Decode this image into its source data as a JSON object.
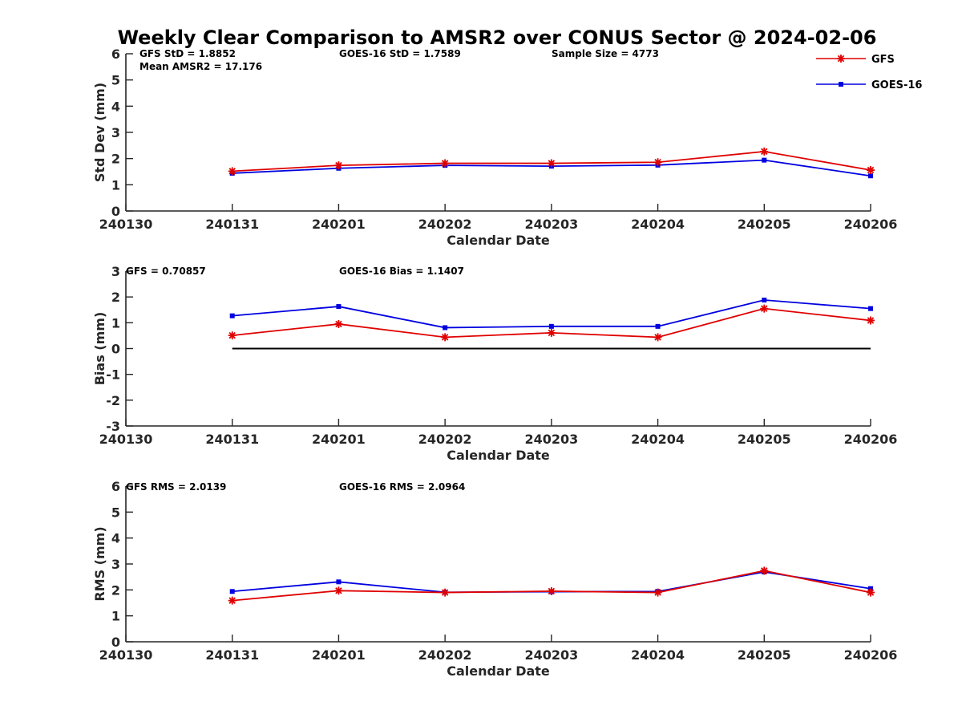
{
  "title": "Weekly Clear Comparison to AMSR2 over CONUS Sector @ 2024-02-06",
  "legend": [
    {
      "name": "GFS",
      "color": "#e00000",
      "marker": "asterisk"
    },
    {
      "name": "GOES-16",
      "color": "#0000e0",
      "marker": "square"
    }
  ],
  "chart_data": [
    {
      "type": "line",
      "ylabel": "Std Dev (mm)",
      "xlabel": "Calendar Date",
      "xticks": [
        "240130",
        "240131",
        "240201",
        "240202",
        "240203",
        "240204",
        "240205",
        "240206"
      ],
      "ylim": [
        0,
        6
      ],
      "yticks": [
        "0",
        "1",
        "2",
        "3",
        "4",
        "5",
        "6"
      ],
      "stats": [
        "GFS StD = 1.8852",
        "GOES-16 StD = 1.7589",
        "Sample Size = 4773",
        "Mean AMSR2 = 17.176"
      ],
      "zero_line": false,
      "series": [
        {
          "name": "GFS",
          "x": [
            "240131",
            "240201",
            "240202",
            "240203",
            "240204",
            "240205",
            "240206"
          ],
          "values": [
            1.52,
            1.74,
            1.82,
            1.82,
            1.86,
            2.27,
            1.56
          ]
        },
        {
          "name": "GOES-16",
          "x": [
            "240131",
            "240201",
            "240202",
            "240203",
            "240204",
            "240205",
            "240206"
          ],
          "values": [
            1.44,
            1.63,
            1.74,
            1.71,
            1.75,
            1.94,
            1.34
          ]
        }
      ]
    },
    {
      "type": "line",
      "ylabel": "Bias (mm)",
      "xlabel": "Calendar Date",
      "xticks": [
        "240130",
        "240131",
        "240201",
        "240202",
        "240203",
        "240204",
        "240205",
        "240206"
      ],
      "ylim": [
        -3,
        3
      ],
      "yticks": [
        "-3",
        "-2",
        "-1",
        "0",
        "1",
        "2",
        "3"
      ],
      "stats": [
        "GFS = 0.70857",
        "GOES-16 Bias  = 1.1407"
      ],
      "zero_line": true,
      "series": [
        {
          "name": "GFS",
          "x": [
            "240131",
            "240201",
            "240202",
            "240203",
            "240204",
            "240205",
            "240206"
          ],
          "values": [
            0.51,
            0.95,
            0.44,
            0.61,
            0.44,
            1.55,
            1.09
          ]
        },
        {
          "name": "GOES-16",
          "x": [
            "240131",
            "240201",
            "240202",
            "240203",
            "240204",
            "240205",
            "240206"
          ],
          "values": [
            1.27,
            1.63,
            0.81,
            0.86,
            0.86,
            1.88,
            1.55
          ]
        }
      ]
    },
    {
      "type": "line",
      "ylabel": "RMS (mm)",
      "xlabel": "Calendar Date",
      "xticks": [
        "240130",
        "240131",
        "240201",
        "240202",
        "240203",
        "240204",
        "240205",
        "240206"
      ],
      "ylim": [
        0,
        6
      ],
      "yticks": [
        "0",
        "1",
        "2",
        "3",
        "4",
        "5",
        "6"
      ],
      "stats": [
        "GFS RMS = 2.0139",
        "GOES-16 RMS = 2.0964"
      ],
      "zero_line": false,
      "series": [
        {
          "name": "GFS",
          "x": [
            "240131",
            "240201",
            "240202",
            "240203",
            "240204",
            "240205",
            "240206"
          ],
          "values": [
            1.59,
            1.97,
            1.9,
            1.95,
            1.9,
            2.74,
            1.9
          ]
        },
        {
          "name": "GOES-16",
          "x": [
            "240131",
            "240201",
            "240202",
            "240203",
            "240204",
            "240205",
            "240206"
          ],
          "values": [
            1.94,
            2.31,
            1.91,
            1.93,
            1.94,
            2.69,
            2.05
          ]
        }
      ]
    }
  ]
}
